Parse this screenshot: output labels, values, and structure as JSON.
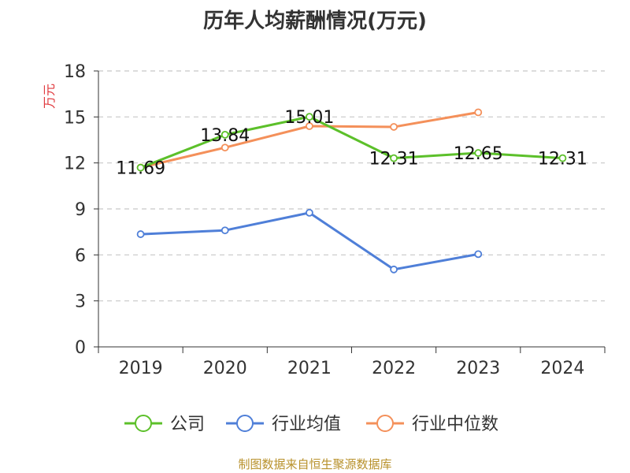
{
  "colors": {
    "company": "#5cc02a",
    "industry_avg": "#4f7fd8",
    "industry_median": "#f4905a",
    "axis": "#333333",
    "grid": "#c8c8c8",
    "ylabel": "#e0393e",
    "source": "#b8912b"
  },
  "chart_data": {
    "type": "line",
    "title": "历年人均薪酬情况(万元)",
    "ylabel": "万元",
    "xlabel": "",
    "categories": [
      "2019",
      "2020",
      "2021",
      "2022",
      "2023",
      "2024"
    ],
    "ylim": [
      0,
      18
    ],
    "yticks": [
      0,
      3,
      6,
      9,
      12,
      15,
      18
    ],
    "grid": true,
    "legend_position": "bottom",
    "series": [
      {
        "name": "公司",
        "values": [
          11.69,
          13.84,
          15.01,
          12.31,
          12.65,
          12.31
        ],
        "labels": [
          "11.69",
          "13.84",
          "15.01",
          "12.31",
          "12.65",
          "12.31"
        ]
      },
      {
        "name": "行业均值",
        "values": [
          7.35,
          7.6,
          8.75,
          5.05,
          6.05,
          null
        ]
      },
      {
        "name": "行业中位数",
        "values": [
          11.7,
          13.0,
          14.4,
          14.35,
          15.3,
          null
        ]
      }
    ]
  },
  "source": "制图数据来自恒生聚源数据库"
}
